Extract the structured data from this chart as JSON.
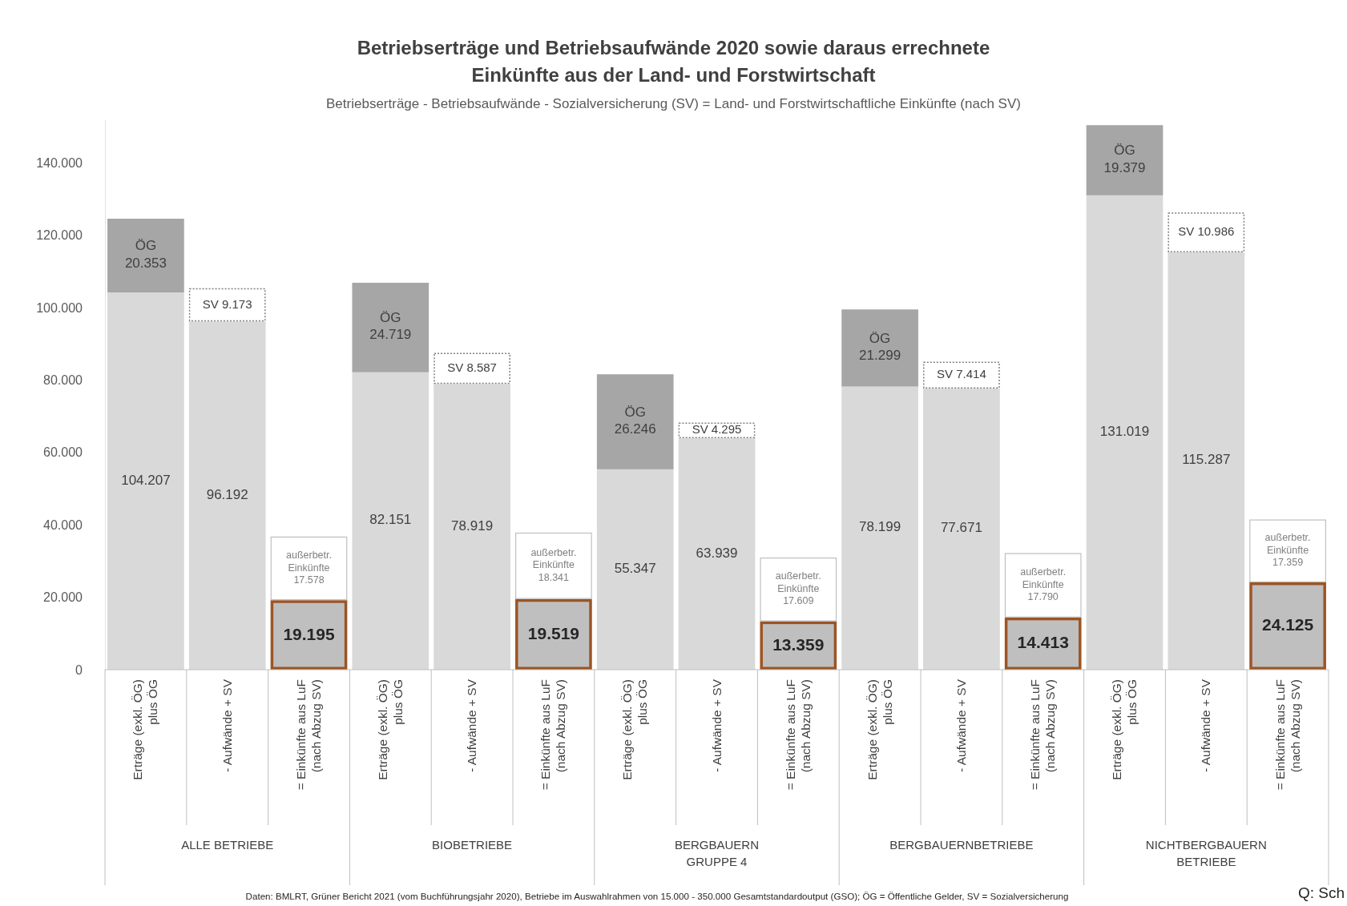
{
  "chart_data": {
    "type": "bar",
    "stacked": true,
    "title": "Betriebserträge und Betriebsaufwände 2020 sowie daraus errechnete\nEinkünfte aus der Land- und Forstwirtschaft",
    "subtitle": "Betriebserträge - Betriebsaufwände - Sozialversicherung (SV) = Land- und Forstwirtschaftliche Einkünfte (nach SV)",
    "categories": [
      "Erträge (exkl. ÖG)\nplus ÖG",
      "- Aufwände + SV",
      "= Einkünfte aus LuF\n(nach Abzug SV)",
      "Erträge (exkl. ÖG)\nplus ÖG",
      "- Aufwände + SV",
      "= Einkünfte aus LuF\n(nach Abzug SV)",
      "Erträge (exkl. ÖG)\nplus ÖG",
      "- Aufwände + SV",
      "= Einkünfte aus LuF\n(nach Abzug SV)",
      "Erträge (exkl. ÖG)\nplus ÖG",
      "- Aufwände + SV",
      "= Einkünfte aus LuF\n(nach Abzug SV)",
      "Erträge (exkl. ÖG)\nplus ÖG",
      "- Aufwände + SV",
      "= Einkünfte aus LuF\n(nach Abzug SV)"
    ],
    "series": [
      {
        "color": "#d9d9d9",
        "values": [
          104207,
          96192,
          null,
          82151,
          78919,
          null,
          55347,
          63939,
          null,
          78199,
          77671,
          null,
          131019,
          115287,
          null
        ],
        "value_labels": [
          "104.207",
          "96.192",
          null,
          "82.151",
          "78.919",
          null,
          "55.347",
          "63.939",
          null,
          "78.199",
          "77.671",
          null,
          "131.019",
          "115.287",
          null
        ]
      },
      {
        "color": "#a6a6a6",
        "values": [
          20353,
          null,
          null,
          24719,
          null,
          null,
          26246,
          null,
          null,
          21299,
          null,
          null,
          19379,
          null,
          null
        ],
        "value_labels": [
          "ÖG\n20.353",
          null,
          null,
          "ÖG\n24.719",
          null,
          null,
          "ÖG\n26.246",
          null,
          null,
          "ÖG\n21.299",
          null,
          null,
          "ÖG\n19.379",
          null,
          null
        ]
      },
      {
        "color": "#ffffff",
        "values": [
          null,
          9173,
          null,
          null,
          8587,
          null,
          null,
          4295,
          null,
          null,
          7414,
          null,
          null,
          10986,
          null
        ],
        "value_labels": [
          null,
          "SV 9.173",
          null,
          null,
          "SV 8.587",
          null,
          null,
          "SV 4.295",
          null,
          null,
          "SV 7.414",
          null,
          null,
          "SV 10.986",
          null
        ]
      },
      {
        "color": "#bfbfbf",
        "values": [
          null,
          null,
          19195,
          null,
          null,
          19519,
          null,
          null,
          13359,
          null,
          null,
          14413,
          null,
          null,
          24125
        ],
        "value_labels": [
          null,
          null,
          "19.195",
          null,
          null,
          "19.519",
          null,
          null,
          "13.359",
          null,
          null,
          "14.413",
          null,
          null,
          "24.125"
        ]
      },
      {
        "color": "#ffffff",
        "values": [
          null,
          null,
          17578,
          null,
          null,
          18341,
          null,
          null,
          17609,
          null,
          null,
          17790,
          null,
          null,
          17359
        ],
        "value_labels": [
          null,
          null,
          "außerbetr.\nEinkünfte\n17.578",
          null,
          null,
          "außerbetr.\nEinkünfte\n18.341",
          null,
          null,
          "außerbetr.\nEinkünfte\n17.609",
          null,
          null,
          "außerbetr.\nEinkünfte\n17.790",
          null,
          null,
          "außerbetr.\nEinkünfte\n17.359"
        ]
      }
    ],
    "ylim": [
      0,
      152000
    ],
    "yticks": [
      {
        "value": 0,
        "label": "0"
      },
      {
        "value": 20000,
        "label": "20.000"
      },
      {
        "value": 40000,
        "label": "40.000"
      },
      {
        "value": 60000,
        "label": "60.000"
      },
      {
        "value": 80000,
        "label": "80.000"
      },
      {
        "value": 100000,
        "label": "100.000"
      },
      {
        "value": 120000,
        "label": "120.000"
      },
      {
        "value": 140000,
        "label": "140.000"
      }
    ],
    "grid": false,
    "annotations": [
      "ALLE BETRIEBE",
      "BIOBETRIEBE",
      "BERGBAUERN\nGRUPPE 4",
      "BERGBAUERNBETRIEBE",
      "NICHTBERGBAUERN\nBETRIEBE",
      "Daten: BMLRT, Grüner Bericht 2021 (vom Buchführungsjahr 2020), Betriebe im Auswahlrahmen von 15.000 - 350.000 Gesamtstandardoutput (GSO); ÖG = Öffentliche Gelder, SV = Sozialversicherung",
      "Q: Sch"
    ]
  }
}
